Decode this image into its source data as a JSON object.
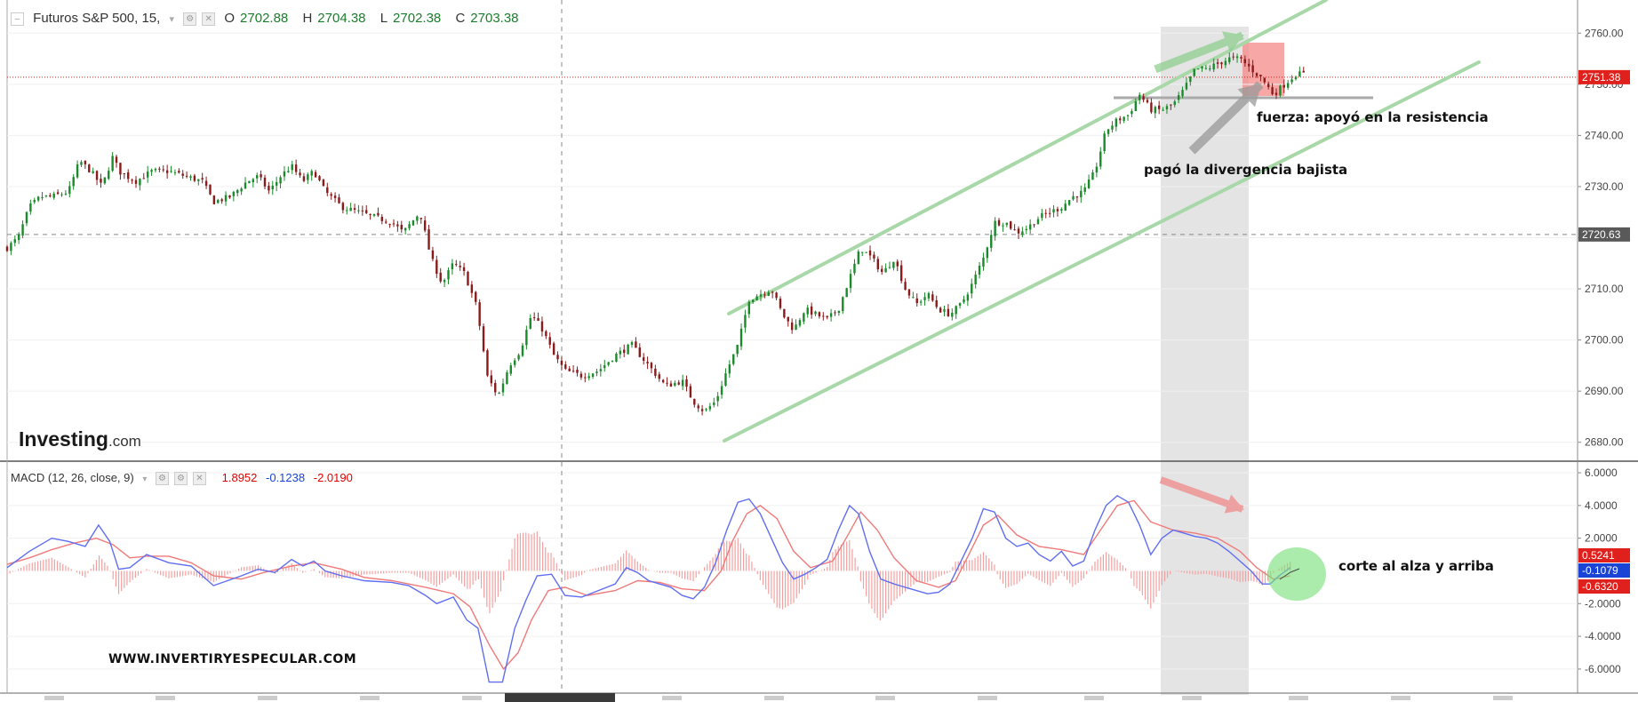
{
  "header": {
    "symbol": "Futuros S&P 500, 15,",
    "ohlc": [
      {
        "key": "O",
        "value": "2702.88"
      },
      {
        "key": "H",
        "value": "2704.38"
      },
      {
        "key": "L",
        "value": "2702.38"
      },
      {
        "key": "C",
        "value": "2703.38"
      }
    ]
  },
  "macd_legend": {
    "label": "MACD (12, 26, close, 9)",
    "values": [
      {
        "value": "1.8952",
        "color": "#e00000"
      },
      {
        "value": "-0.1238",
        "color": "#1a44d6"
      },
      {
        "value": "-2.0190",
        "color": "#e00000"
      }
    ]
  },
  "logo": {
    "main": "Investing",
    "suffix": ".com"
  },
  "annotations": {
    "resistance": "fuerza: apoyó en la resistencia",
    "divergence": "pagó la divergencia bajista",
    "macd_cross": "corte al alza y arriba",
    "website": "WWW.INVERTIRYESPECULAR.COM"
  },
  "colors": {
    "up": "#1b8a2a",
    "down": "#8b1a1a",
    "macd": "#5f6ef0",
    "signal": "#f07a7a",
    "histogram": "#f4a0a0",
    "channel": "#a8d8a8",
    "price_tag": "#e0201c",
    "crosshair_tag": "#595959"
  },
  "chart_data": [
    {
      "type": "candlestick",
      "title": "Futuros S&P 500, 15,",
      "ylim": [
        2677,
        2763
      ],
      "y_ticks": [
        "2760.00",
        "2750.00",
        "2740.00",
        "2730.00",
        "2720.00",
        "2710.00",
        "2700.00",
        "2690.00",
        "2680.00"
      ],
      "price_lines": [
        {
          "value": 2751.38,
          "label": "2751.38",
          "style": "dotted-red"
        },
        {
          "value": 2720.63,
          "label": "2720.63",
          "style": "dashed-gray"
        }
      ],
      "close_path": [
        [
          0,
          2718
        ],
        [
          10,
          2720
        ],
        [
          20,
          2726
        ],
        [
          30,
          2728
        ],
        [
          40,
          2728
        ],
        [
          55,
          2729
        ],
        [
          65,
          2735
        ],
        [
          75,
          2733
        ],
        [
          85,
          2730
        ],
        [
          95,
          2736
        ],
        [
          100,
          2733
        ],
        [
          115,
          2731
        ],
        [
          130,
          2733
        ],
        [
          145,
          2733
        ],
        [
          160,
          2732
        ],
        [
          175,
          2731
        ],
        [
          185,
          2727
        ],
        [
          200,
          2728
        ],
        [
          215,
          2731
        ],
        [
          225,
          2732
        ],
        [
          235,
          2729
        ],
        [
          245,
          2732
        ],
        [
          255,
          2734
        ],
        [
          265,
          2731
        ],
        [
          275,
          2733
        ],
        [
          285,
          2729
        ],
        [
          300,
          2726
        ],
        [
          315,
          2725
        ],
        [
          330,
          2724
        ],
        [
          345,
          2723
        ],
        [
          355,
          2721
        ],
        [
          370,
          2725
        ],
        [
          380,
          2716
        ],
        [
          390,
          2711
        ],
        [
          400,
          2715
        ],
        [
          410,
          2713
        ],
        [
          420,
          2707
        ],
        [
          425,
          2701
        ],
        [
          430,
          2693
        ],
        [
          440,
          2689
        ],
        [
          450,
          2695
        ],
        [
          460,
          2698
        ],
        [
          470,
          2705
        ],
        [
          480,
          2702
        ],
        [
          490,
          2697
        ],
        [
          500,
          2694
        ],
        [
          515,
          2693
        ],
        [
          530,
          2694
        ],
        [
          545,
          2697
        ],
        [
          560,
          2699
        ],
        [
          575,
          2695
        ],
        [
          590,
          2691
        ],
        [
          605,
          2692
        ],
        [
          615,
          2688
        ],
        [
          625,
          2686
        ],
        [
          635,
          2688
        ],
        [
          645,
          2694
        ],
        [
          655,
          2699
        ],
        [
          665,
          2708
        ],
        [
          675,
          2709
        ],
        [
          685,
          2710
        ],
        [
          695,
          2705
        ],
        [
          705,
          2702
        ],
        [
          715,
          2706
        ],
        [
          725,
          2705
        ],
        [
          735,
          2704
        ],
        [
          745,
          2706
        ],
        [
          755,
          2712
        ],
        [
          765,
          2718
        ],
        [
          775,
          2716
        ],
        [
          785,
          2713
        ],
        [
          795,
          2716
        ],
        [
          805,
          2710
        ],
        [
          815,
          2707
        ],
        [
          825,
          2709
        ],
        [
          835,
          2706
        ],
        [
          845,
          2705
        ],
        [
          855,
          2707
        ],
        [
          865,
          2711
        ],
        [
          875,
          2716
        ],
        [
          885,
          2723
        ],
        [
          895,
          2723
        ],
        [
          905,
          2721
        ],
        [
          915,
          2722
        ],
        [
          925,
          2724
        ],
        [
          935,
          2725
        ],
        [
          945,
          2726
        ],
        [
          955,
          2728
        ],
        [
          965,
          2729
        ],
        [
          975,
          2733
        ],
        [
          985,
          2741
        ],
        [
          995,
          2743
        ],
        [
          1005,
          2744
        ],
        [
          1015,
          2748
        ],
        [
          1025,
          2745
        ],
        [
          1035,
          2745
        ],
        [
          1045,
          2746
        ],
        [
          1055,
          2749
        ],
        [
          1065,
          2753
        ],
        [
          1075,
          2753
        ],
        [
          1085,
          2754
        ],
        [
          1095,
          2755
        ],
        [
          1105,
          2755
        ],
        [
          1115,
          2753
        ],
        [
          1125,
          2751
        ],
        [
          1135,
          2748
        ],
        [
          1145,
          2750
        ],
        [
          1155,
          2752
        ],
        [
          1163,
          2752
        ]
      ]
    },
    {
      "type": "macd",
      "title": "MACD (12, 26, close, 9)",
      "ylim": [
        -7.2,
        6.6
      ],
      "y_ticks": [
        "6.0000",
        "4.0000",
        "2.0000",
        "-2.0000",
        "-4.0000",
        "-6.0000"
      ],
      "value_tags": [
        {
          "value": 0.5241,
          "label": "0.5241",
          "color": "#e0201c"
        },
        {
          "value": -0.1079,
          "label": "-0.1079",
          "color": "#1a44d6"
        },
        {
          "value": -0.632,
          "label": "-0.6320",
          "color": "#e0201c"
        }
      ],
      "series": [
        {
          "name": "MACD",
          "points": [
            [
              0,
              0.2
            ],
            [
              20,
              1.2
            ],
            [
              40,
              2.0
            ],
            [
              55,
              1.8
            ],
            [
              70,
              1.5
            ],
            [
              82,
              2.8
            ],
            [
              92,
              1.8
            ],
            [
              100,
              0.1
            ],
            [
              110,
              0.2
            ],
            [
              125,
              1.0
            ],
            [
              145,
              0.5
            ],
            [
              165,
              0.3
            ],
            [
              185,
              -0.9
            ],
            [
              210,
              -0.3
            ],
            [
              225,
              0.1
            ],
            [
              240,
              -0.1
            ],
            [
              255,
              0.7
            ],
            [
              265,
              0.3
            ],
            [
              275,
              0.6
            ],
            [
              285,
              0.0
            ],
            [
              300,
              -0.3
            ],
            [
              320,
              -0.6
            ],
            [
              345,
              -0.7
            ],
            [
              360,
              -0.9
            ],
            [
              375,
              -1.5
            ],
            [
              385,
              -2.0
            ],
            [
              400,
              -1.6
            ],
            [
              412,
              -3.0
            ],
            [
              422,
              -3.5
            ],
            [
              432,
              -6.8
            ],
            [
              444,
              -6.8
            ],
            [
              455,
              -3.5
            ],
            [
              465,
              -1.8
            ],
            [
              475,
              -0.3
            ],
            [
              488,
              -0.2
            ],
            [
              500,
              -1.5
            ],
            [
              515,
              -1.6
            ],
            [
              530,
              -1.2
            ],
            [
              545,
              -0.8
            ],
            [
              555,
              0.2
            ],
            [
              565,
              -0.1
            ],
            [
              575,
              -0.6
            ],
            [
              585,
              -0.8
            ],
            [
              595,
              -1.0
            ],
            [
              605,
              -1.5
            ],
            [
              615,
              -1.7
            ],
            [
              625,
              -1.0
            ],
            [
              635,
              0.5
            ],
            [
              645,
              2.5
            ],
            [
              655,
              4.2
            ],
            [
              665,
              4.4
            ],
            [
              675,
              3.5
            ],
            [
              685,
              2.0
            ],
            [
              695,
              0.5
            ],
            [
              705,
              -0.5
            ],
            [
              715,
              -0.2
            ],
            [
              725,
              0.2
            ],
            [
              735,
              0.7
            ],
            [
              745,
              2.5
            ],
            [
              755,
              4.0
            ],
            [
              763,
              3.5
            ],
            [
              773,
              1.2
            ],
            [
              783,
              -0.5
            ],
            [
              795,
              -0.8
            ],
            [
              805,
              -1.0
            ],
            [
              815,
              -1.2
            ],
            [
              825,
              -1.4
            ],
            [
              835,
              -1.3
            ],
            [
              845,
              -0.8
            ],
            [
              855,
              0.6
            ],
            [
              865,
              2.0
            ],
            [
              875,
              3.8
            ],
            [
              885,
              3.6
            ],
            [
              895,
              2.0
            ],
            [
              905,
              1.5
            ],
            [
              915,
              1.7
            ],
            [
              925,
              1.0
            ],
            [
              935,
              0.6
            ],
            [
              945,
              1.2
            ],
            [
              955,
              0.3
            ],
            [
              965,
              0.6
            ],
            [
              975,
              2.5
            ],
            [
              985,
              4.0
            ],
            [
              995,
              4.6
            ],
            [
              1005,
              4.2
            ],
            [
              1015,
              2.8
            ],
            [
              1025,
              1.0
            ],
            [
              1035,
              2.0
            ],
            [
              1045,
              2.5
            ],
            [
              1055,
              2.3
            ],
            [
              1065,
              2.1
            ],
            [
              1075,
              2.0
            ],
            [
              1085,
              1.7
            ],
            [
              1095,
              1.2
            ],
            [
              1105,
              0.6
            ],
            [
              1115,
              0.0
            ],
            [
              1125,
              -0.8
            ],
            [
              1132,
              -0.8
            ],
            [
              1140,
              -0.3
            ],
            [
              1150,
              0.2
            ]
          ]
        },
        {
          "name": "Signal",
          "points": [
            [
              0,
              0.4
            ],
            [
              20,
              0.8
            ],
            [
              40,
              1.3
            ],
            [
              60,
              1.7
            ],
            [
              80,
              2.0
            ],
            [
              95,
              1.6
            ],
            [
              110,
              0.8
            ],
            [
              125,
              0.9
            ],
            [
              145,
              0.9
            ],
            [
              165,
              0.5
            ],
            [
              185,
              -0.3
            ],
            [
              210,
              -0.5
            ],
            [
              230,
              -0.1
            ],
            [
              255,
              0.3
            ],
            [
              275,
              0.5
            ],
            [
              300,
              0.1
            ],
            [
              320,
              -0.4
            ],
            [
              345,
              -0.6
            ],
            [
              375,
              -1.0
            ],
            [
              400,
              -1.4
            ],
            [
              415,
              -2.2
            ],
            [
              432,
              -4.5
            ],
            [
              445,
              -6.0
            ],
            [
              458,
              -5.0
            ],
            [
              470,
              -3.0
            ],
            [
              485,
              -1.2
            ],
            [
              500,
              -1.0
            ],
            [
              520,
              -1.5
            ],
            [
              545,
              -1.2
            ],
            [
              565,
              -0.6
            ],
            [
              585,
              -0.7
            ],
            [
              605,
              -1.1
            ],
            [
              625,
              -1.2
            ],
            [
              640,
              0.0
            ],
            [
              650,
              1.8
            ],
            [
              663,
              3.5
            ],
            [
              675,
              4.0
            ],
            [
              690,
              3.2
            ],
            [
              705,
              1.2
            ],
            [
              720,
              0.2
            ],
            [
              740,
              0.6
            ],
            [
              752,
              2.0
            ],
            [
              765,
              3.6
            ],
            [
              780,
              2.5
            ],
            [
              795,
              0.8
            ],
            [
              815,
              -0.6
            ],
            [
              835,
              -1.0
            ],
            [
              850,
              -0.6
            ],
            [
              862,
              1.0
            ],
            [
              875,
              2.8
            ],
            [
              888,
              3.4
            ],
            [
              905,
              2.2
            ],
            [
              925,
              1.5
            ],
            [
              945,
              1.3
            ],
            [
              965,
              1.0
            ],
            [
              980,
              2.5
            ],
            [
              995,
              4.0
            ],
            [
              1010,
              4.3
            ],
            [
              1025,
              3.0
            ],
            [
              1045,
              2.5
            ],
            [
              1065,
              2.3
            ],
            [
              1085,
              2.0
            ],
            [
              1105,
              1.2
            ],
            [
              1120,
              0.2
            ],
            [
              1135,
              -0.5
            ],
            [
              1150,
              -0.3
            ]
          ]
        }
      ]
    }
  ]
}
